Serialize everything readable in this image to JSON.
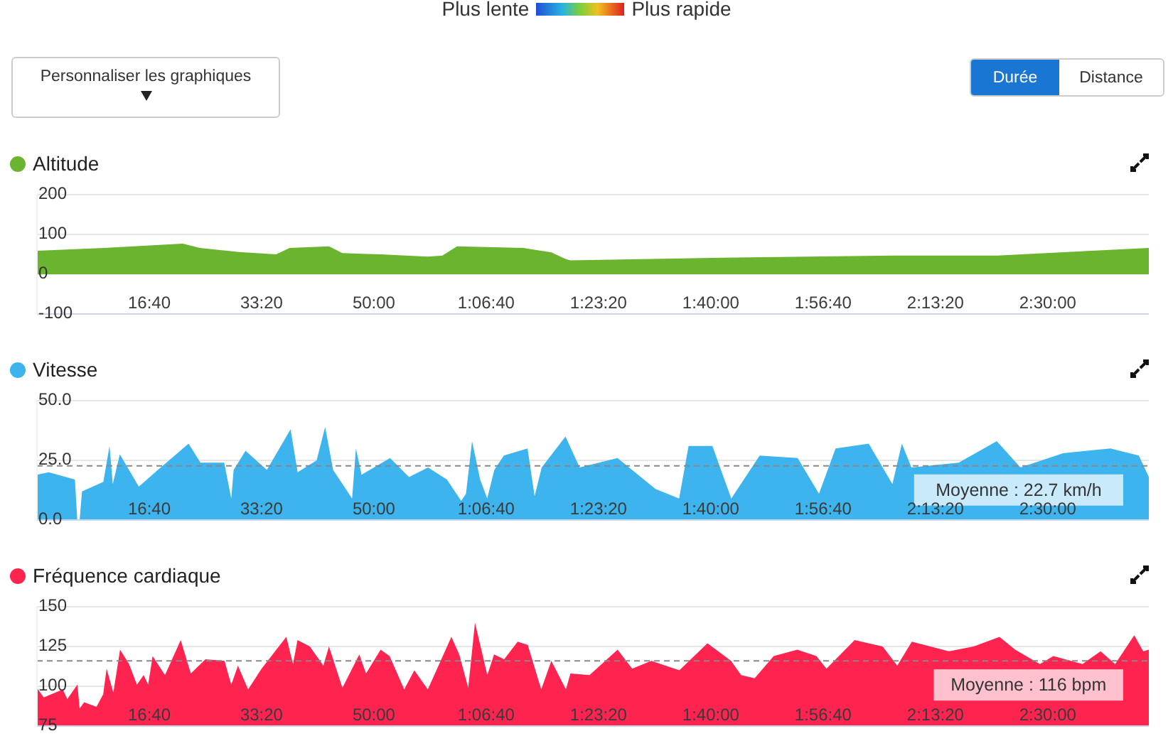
{
  "chart_data": [
    {
      "type": "area",
      "title": "Altitude",
      "annotations": [
        "Plus lente",
        "Plus rapide",
        "Personnaliser les graphiques",
        "Durée",
        "Distance"
      ],
      "x": [
        0,
        600,
        1300,
        1450,
        1800,
        2130,
        2250,
        2600,
        2720,
        3060,
        3480,
        3610,
        3740,
        4330,
        4580,
        4710,
        4750,
        6010,
        7620,
        8550,
        9390,
        9900
      ],
      "series": [
        {
          "color": "#6ab42f",
          "values": [
            59,
            66,
            77,
            66,
            56,
            50,
            66,
            70,
            53,
            50,
            44,
            47,
            70,
            66,
            55,
            38,
            35,
            41,
            47,
            47,
            59,
            66
          ]
        }
      ],
      "xlim": [
        0,
        9900
      ],
      "xticks": [
        {
          "value": 1000,
          "label": "16:40"
        },
        {
          "value": 2000,
          "label": "33:20"
        },
        {
          "value": 3000,
          "label": "50:00"
        },
        {
          "value": 4000,
          "label": "1:06:40"
        },
        {
          "value": 5000,
          "label": "1:23:20"
        },
        {
          "value": 6000,
          "label": "1:40:00"
        },
        {
          "value": 7000,
          "label": "1:56:40"
        },
        {
          "value": 8000,
          "label": "2:13:20"
        },
        {
          "value": 9000,
          "label": "2:30:00"
        }
      ],
      "ylim": [
        -100,
        200
      ],
      "yticks": [
        -100,
        0,
        100,
        200
      ],
      "grid": "y"
    },
    {
      "type": "area",
      "title": "Vitesse",
      "x": [
        0,
        105,
        338,
        359,
        380,
        401,
        591,
        646,
        675,
        738,
        907,
        1076,
        1350,
        1456,
        1667,
        1730,
        1751,
        1857,
        2047,
        2258,
        2321,
        2490,
        2566,
        2637,
        2806,
        2840,
        2890,
        3144,
        3313,
        3482,
        3650,
        3777,
        3820,
        3874,
        3946,
        4009,
        4072,
        4157,
        4368,
        4431,
        4494,
        4706,
        4832,
        5169,
        5507,
        5718,
        5802,
        6014,
        6182,
        6435,
        6773,
        6963,
        7111,
        7406,
        7617,
        7701,
        7786,
        8207,
        8546,
        8757,
        9136,
        9558,
        9811,
        9900
      ],
      "series": [
        {
          "color": "#3db4ee",
          "values": [
            19,
            20,
            17,
            0,
            0,
            12,
            16,
            31,
            15,
            27.5,
            14,
            21,
            32,
            24,
            24,
            9,
            21,
            29,
            21,
            38,
            20,
            25,
            39,
            21,
            9,
            30,
            19,
            26,
            18,
            22,
            17,
            8,
            11,
            33,
            17,
            9,
            21,
            27,
            30,
            10,
            22,
            35,
            22,
            26,
            13,
            9,
            31,
            31,
            9,
            27,
            26,
            11,
            30,
            32,
            15,
            32,
            22,
            24,
            33,
            22,
            28,
            30,
            27,
            18
          ]
        }
      ],
      "xlim": [
        0,
        9900
      ],
      "xticks": [
        {
          "value": 1000,
          "label": "16:40"
        },
        {
          "value": 2000,
          "label": "33:20"
        },
        {
          "value": 3000,
          "label": "50:00"
        },
        {
          "value": 4000,
          "label": "1:06:40"
        },
        {
          "value": 5000,
          "label": "1:23:20"
        },
        {
          "value": 6000,
          "label": "1:40:00"
        },
        {
          "value": 7000,
          "label": "1:56:40"
        },
        {
          "value": 8000,
          "label": "2:13:20"
        },
        {
          "value": 9000,
          "label": "2:30:00"
        }
      ],
      "ylim": [
        0,
        50
      ],
      "yticks": [
        {
          "value": 0,
          "label": "0.0"
        },
        {
          "value": 25,
          "label": "25.0"
        },
        {
          "value": 50,
          "label": "50.0"
        }
      ],
      "grid": "y",
      "ref_lines": [
        {
          "axis": "y",
          "value": 22.7,
          "label": "Moyenne : 22.7 km/h",
          "color": "#888888",
          "line_style": "dashed"
        }
      ]
    },
    {
      "type": "area",
      "title": "Fréquence cardiaque",
      "x": [
        0,
        60,
        230,
        270,
        360,
        380,
        420,
        530,
        590,
        620,
        680,
        740,
        820,
        890,
        950,
        990,
        1030,
        1140,
        1280,
        1370,
        1500,
        1670,
        1730,
        1790,
        1880,
        2000,
        2220,
        2280,
        2320,
        2430,
        2550,
        2600,
        2720,
        2870,
        2930,
        3060,
        3140,
        3270,
        3360,
        3480,
        3690,
        3760,
        3840,
        3900,
        4010,
        4070,
        4160,
        4280,
        4370,
        4490,
        4580,
        4710,
        4750,
        4920,
        5170,
        5300,
        5470,
        5720,
        5970,
        6180,
        6270,
        6390,
        6560,
        6770,
        6940,
        7030,
        7280,
        7530,
        7660,
        7790,
        8120,
        8340,
        8570,
        8710,
        8930,
        9050,
        9310,
        9470,
        9600,
        9770,
        9850,
        9900
      ],
      "series": [
        {
          "color": "#ff2350",
          "values": [
            99,
            93,
            98,
            92,
            101,
            86,
            90,
            87,
            95,
            111,
            96,
            123,
            114,
            101,
            107,
            101,
            119,
            107,
            129,
            108,
            117,
            116,
            101,
            113,
            98,
            111,
            131,
            114,
            129,
            125,
            113,
            125,
            99,
            120,
            108,
            123,
            119,
            98,
            110,
            98,
            131,
            120,
            99,
            140,
            107,
            120,
            117,
            128,
            126,
            98,
            116,
            98,
            108,
            107,
            123,
            111,
            116,
            110,
            127,
            116,
            107,
            105,
            119,
            123,
            119,
            111,
            129,
            125,
            113,
            128,
            122,
            125,
            131,
            123,
            114,
            119,
            114,
            122,
            114,
            132,
            122,
            123
          ]
        }
      ],
      "xlim": [
        0,
        9900
      ],
      "xticks": [
        {
          "value": 1000,
          "label": "16:40"
        },
        {
          "value": 2000,
          "label": "33:20"
        },
        {
          "value": 3000,
          "label": "50:00"
        },
        {
          "value": 4000,
          "label": "1:06:40"
        },
        {
          "value": 5000,
          "label": "1:23:20"
        },
        {
          "value": 6000,
          "label": "1:40:00"
        },
        {
          "value": 7000,
          "label": "1:56:40"
        },
        {
          "value": 8000,
          "label": "2:13:20"
        },
        {
          "value": 9000,
          "label": "2:30:00"
        }
      ],
      "ylim": [
        75,
        150
      ],
      "yticks": [
        75,
        100,
        125,
        150
      ],
      "grid": "y",
      "ref_lines": [
        {
          "axis": "y",
          "value": 116,
          "label": "Moyenne : 116 bpm",
          "color": "#888888",
          "line_style": "dashed"
        }
      ]
    }
  ]
}
